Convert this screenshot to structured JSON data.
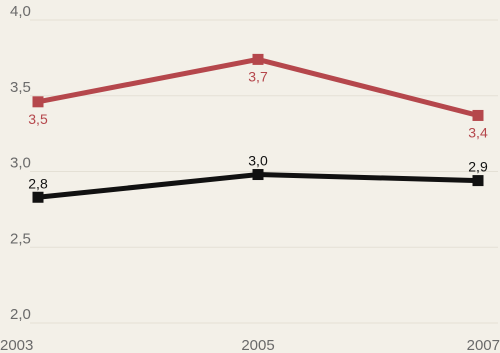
{
  "chart_data": {
    "type": "line",
    "x": [
      "2003",
      "2005",
      "2007"
    ],
    "ylim": [
      2.0,
      4.0
    ],
    "yticks": [
      "2,0",
      "2,5",
      "3,0",
      "3,5",
      "4,0"
    ],
    "grid": true,
    "series": [
      {
        "values": [
          3.46,
          3.74,
          3.37
        ],
        "labels": [
          "3,5",
          "3,7",
          "3,4"
        ],
        "color": "#b5474c",
        "label_position": "below"
      },
      {
        "values": [
          2.83,
          2.98,
          2.94
        ],
        "labels": [
          "2,8",
          "3,0",
          "2,9"
        ],
        "color": "#111111",
        "label_position": "above"
      }
    ]
  }
}
